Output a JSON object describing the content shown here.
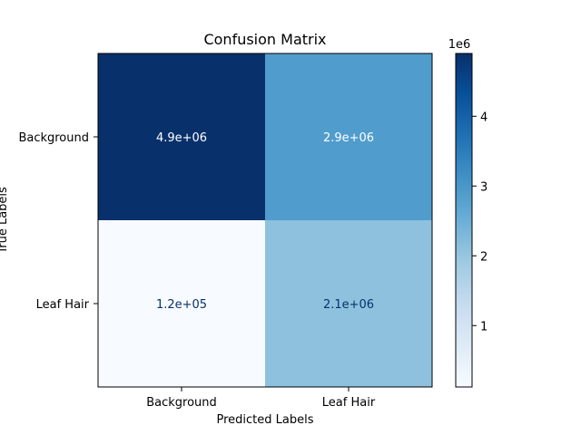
{
  "chart_data": {
    "type": "heatmap",
    "title": "Confusion Matrix",
    "xlabel": "Predicted Labels",
    "ylabel": "True Labels",
    "x_categories": [
      "Background",
      "Leaf Hair"
    ],
    "y_categories": [
      "Background",
      "Leaf Hair"
    ],
    "values": [
      [
        4900000,
        2900000
      ],
      [
        120000,
        2100000
      ]
    ],
    "cell_labels": [
      [
        "4.9e+06",
        "2.9e+06"
      ],
      [
        "1.2e+05",
        "2.1e+06"
      ]
    ],
    "colormap": "Blues",
    "colorbar": {
      "multiplier_label": "1e6",
      "min": 120000,
      "max": 4900000,
      "ticks": [
        1,
        2,
        3,
        4
      ],
      "tick_scale": 1000000
    },
    "colors": {
      "low": "#f7fbff",
      "high": "#08306b",
      "text_light": "#ffffff",
      "text_dark": "#08306b"
    }
  }
}
